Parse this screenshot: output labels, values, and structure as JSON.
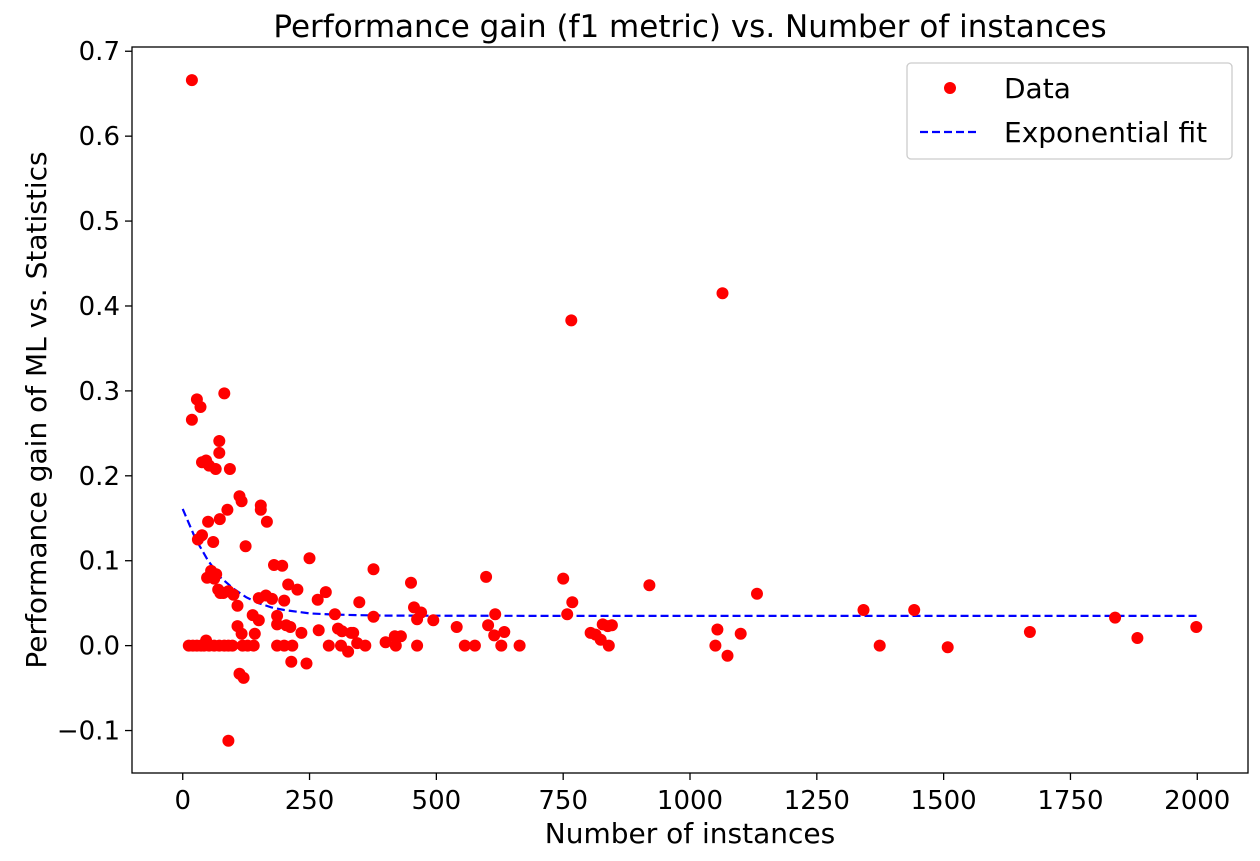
{
  "chart_data": {
    "type": "scatter",
    "title": "Performance gain (f1 metric) vs. Number of instances",
    "xlabel": "Number of instances",
    "ylabel": "Performance gain of ML vs. Statistics",
    "xlim": [
      -100,
      2100
    ],
    "ylim": [
      -0.15,
      0.705
    ],
    "xticks": [
      0,
      250,
      500,
      750,
      1000,
      1250,
      1500,
      1750,
      2000
    ],
    "xtick_labels": [
      "0",
      "250",
      "500",
      "750",
      "1000",
      "1250",
      "1500",
      "1750",
      "2000"
    ],
    "yticks": [
      -0.1,
      0.0,
      0.1,
      0.2,
      0.3,
      0.4,
      0.5,
      0.6,
      0.7
    ],
    "ytick_labels": [
      "−0.1",
      "0.0",
      "0.1",
      "0.2",
      "0.3",
      "0.4",
      "0.5",
      "0.6",
      "0.7"
    ],
    "grid": false,
    "legend_position": "top-right",
    "series": [
      {
        "name": "Data",
        "kind": "scatter",
        "color": "#ff0000",
        "points": [
          [
            18,
            0.666
          ],
          [
            18,
            0.266
          ],
          [
            28,
            0.29
          ],
          [
            35,
            0.281
          ],
          [
            82,
            0.297
          ],
          [
            38,
            0.216
          ],
          [
            46,
            0.218
          ],
          [
            52,
            0.212
          ],
          [
            65,
            0.208
          ],
          [
            72,
            0.227
          ],
          [
            72,
            0.241
          ],
          [
            93,
            0.208
          ],
          [
            30,
            0.125
          ],
          [
            38,
            0.13
          ],
          [
            50,
            0.146
          ],
          [
            60,
            0.122
          ],
          [
            73,
            0.149
          ],
          [
            88,
            0.16
          ],
          [
            112,
            0.176
          ],
          [
            116,
            0.17
          ],
          [
            124,
            0.117
          ],
          [
            154,
            0.165
          ],
          [
            154,
            0.16
          ],
          [
            166,
            0.146
          ],
          [
            48,
            0.08
          ],
          [
            56,
            0.088
          ],
          [
            62,
            0.079
          ],
          [
            66,
            0.084
          ],
          [
            70,
            0.066
          ],
          [
            74,
            0.062
          ],
          [
            80,
            0.062
          ],
          [
            90,
            0.064
          ],
          [
            100,
            0.06
          ],
          [
            108,
            0.047
          ],
          [
            108,
            0.023
          ],
          [
            116,
            0.014
          ],
          [
            138,
            0.036
          ],
          [
            142,
            0.014
          ],
          [
            150,
            0.056
          ],
          [
            150,
            0.03
          ],
          [
            164,
            0.059
          ],
          [
            176,
            0.055
          ],
          [
            180,
            0.095
          ],
          [
            186,
            0.025
          ],
          [
            186,
            0.035
          ],
          [
            196,
            0.094
          ],
          [
            200,
            0.053
          ],
          [
            204,
            0.024
          ],
          [
            208,
            0.072
          ],
          [
            212,
            0.022
          ],
          [
            226,
            0.066
          ],
          [
            234,
            0.015
          ],
          [
            250,
            0.103
          ],
          [
            266,
            0.054
          ],
          [
            268,
            0.018
          ],
          [
            282,
            0.063
          ],
          [
            300,
            0.037
          ],
          [
            306,
            0.02
          ],
          [
            314,
            0.017
          ],
          [
            332,
            0.015
          ],
          [
            336,
            0.015
          ],
          [
            348,
            0.051
          ],
          [
            376,
            0.09
          ],
          [
            376,
            0.034
          ],
          [
            400,
            0.004
          ],
          [
            418,
            0.011
          ],
          [
            430,
            0.011
          ],
          [
            450,
            0.074
          ],
          [
            456,
            0.045
          ],
          [
            462,
            0.031
          ],
          [
            470,
            0.039
          ],
          [
            494,
            0.03
          ],
          [
            540,
            0.022
          ],
          [
            598,
            0.081
          ],
          [
            602,
            0.024
          ],
          [
            616,
            0.037
          ],
          [
            614,
            0.012
          ],
          [
            634,
            0.016
          ],
          [
            750,
            0.079
          ],
          [
            758,
            0.037
          ],
          [
            766,
            0.383
          ],
          [
            768,
            0.051
          ],
          [
            804,
            0.015
          ],
          [
            814,
            0.013
          ],
          [
            824,
            0.007
          ],
          [
            828,
            0.025
          ],
          [
            838,
            0.023
          ],
          [
            846,
            0.024
          ],
          [
            920,
            0.071
          ],
          [
            1054,
            0.019
          ],
          [
            1064,
            0.415
          ],
          [
            1132,
            0.061
          ],
          [
            1100,
            0.014
          ],
          [
            1342,
            0.042
          ],
          [
            1442,
            0.042
          ],
          [
            1670,
            0.016
          ],
          [
            1838,
            0.033
          ],
          [
            1882,
            0.009
          ],
          [
            1998,
            0.022
          ],
          [
            12,
            0.0
          ],
          [
            20,
            0.0
          ],
          [
            28,
            0.0
          ],
          [
            36,
            0.0
          ],
          [
            42,
            0.0
          ],
          [
            46,
            0.006
          ],
          [
            52,
            0.0
          ],
          [
            62,
            0.0
          ],
          [
            72,
            0.0
          ],
          [
            82,
            0.0
          ],
          [
            90,
            0.0
          ],
          [
            98,
            0.0
          ],
          [
            118,
            0.0
          ],
          [
            128,
            0.0
          ],
          [
            140,
            0.0
          ],
          [
            186,
            0.0
          ],
          [
            200,
            0.0
          ],
          [
            216,
            0.0
          ],
          [
            288,
            0.0
          ],
          [
            312,
            0.0
          ],
          [
            344,
            0.003
          ],
          [
            360,
            0.0
          ],
          [
            420,
            0.0
          ],
          [
            462,
            0.0
          ],
          [
            556,
            0.0
          ],
          [
            576,
            0.0
          ],
          [
            628,
            0.0
          ],
          [
            664,
            0.0
          ],
          [
            840,
            0.0
          ],
          [
            1050,
            0.0
          ],
          [
            1374,
            0.0
          ],
          [
            1508,
            -0.002
          ],
          [
            112,
            -0.033
          ],
          [
            120,
            -0.038
          ],
          [
            214,
            -0.019
          ],
          [
            244,
            -0.021
          ],
          [
            326,
            -0.007
          ],
          [
            1074,
            -0.012
          ],
          [
            90,
            -0.112
          ]
        ]
      },
      {
        "name": "Exponential fit",
        "kind": "line",
        "color": "#0000ff",
        "linestyle": "dashed",
        "x": [
          0,
          25,
          50,
          75,
          100,
          125,
          150,
          175,
          200,
          225,
          250,
          300,
          350,
          400,
          500,
          750,
          1000,
          1250,
          1500,
          1750,
          2000
        ],
        "y": [
          0.161,
          0.126,
          0.1,
          0.08,
          0.067,
          0.057,
          0.05,
          0.045,
          0.042,
          0.04,
          0.038,
          0.0365,
          0.0358,
          0.0354,
          0.0352,
          0.035,
          0.035,
          0.035,
          0.035,
          0.035,
          0.035
        ]
      }
    ],
    "legend": [
      {
        "label": "Data",
        "marker": "circle",
        "color": "#ff0000"
      },
      {
        "label": "Exponential fit",
        "marker": "dashed-line",
        "color": "#0000ff"
      }
    ]
  }
}
